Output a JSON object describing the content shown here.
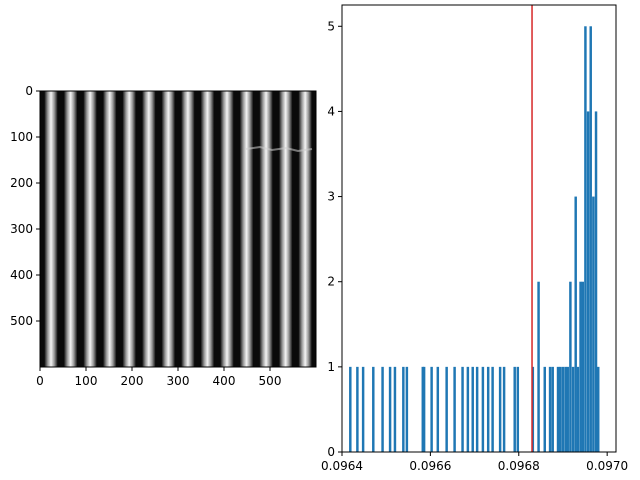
{
  "colors": {
    "bar": "#1f77b4",
    "threshold": "#d62728",
    "frame": "#000000"
  },
  "chart_data": [
    {
      "type": "image",
      "title": "",
      "xlabel": "",
      "ylabel": "",
      "xlim": [
        0,
        600
      ],
      "ylim": [
        600,
        0
      ],
      "x_ticks": [
        0,
        100,
        200,
        300,
        400,
        500
      ],
      "y_ticks": [
        0,
        100,
        200,
        300,
        400,
        500
      ],
      "stripe_count": 14,
      "stripe_period": 42.5,
      "stripe_offset": 10,
      "stripe_width": 28
    },
    {
      "type": "histogram",
      "title": "",
      "xlabel": "",
      "ylabel": "",
      "xlim": [
        0.0964,
        0.09702
      ],
      "ylim": [
        0,
        5.25
      ],
      "x_ticks": [
        "0.0964",
        "0.0966",
        "0.0968",
        "0.0970"
      ],
      "x_tick_values": [
        0.0964,
        0.0966,
        0.0968,
        0.097
      ],
      "y_ticks": [
        0,
        1,
        2,
        3,
        4,
        5
      ],
      "bin_width": 5.6e-06,
      "vline": 0.09683,
      "bins": [
        {
          "x": 0.096416,
          "count": 1
        },
        {
          "x": 0.096432,
          "count": 1
        },
        {
          "x": 0.096445,
          "count": 1
        },
        {
          "x": 0.096468,
          "count": 1
        },
        {
          "x": 0.096489,
          "count": 1
        },
        {
          "x": 0.096506,
          "count": 1
        },
        {
          "x": 0.096517,
          "count": 1
        },
        {
          "x": 0.096536,
          "count": 1
        },
        {
          "x": 0.096544,
          "count": 1
        },
        {
          "x": 0.09658,
          "count": 1
        },
        {
          "x": 0.096583,
          "count": 1
        },
        {
          "x": 0.0966,
          "count": 1
        },
        {
          "x": 0.096614,
          "count": 1
        },
        {
          "x": 0.096634,
          "count": 1
        },
        {
          "x": 0.096652,
          "count": 1
        },
        {
          "x": 0.09667,
          "count": 1
        },
        {
          "x": 0.096682,
          "count": 1
        },
        {
          "x": 0.096693,
          "count": 1
        },
        {
          "x": 0.096703,
          "count": 1
        },
        {
          "x": 0.096716,
          "count": 1
        },
        {
          "x": 0.096728,
          "count": 1
        },
        {
          "x": 0.096738,
          "count": 1
        },
        {
          "x": 0.096755,
          "count": 1
        },
        {
          "x": 0.096764,
          "count": 1
        },
        {
          "x": 0.096788,
          "count": 1
        },
        {
          "x": 0.096795,
          "count": 1
        },
        {
          "x": 0.096829,
          "count": 1
        },
        {
          "x": 0.096842,
          "count": 2
        },
        {
          "x": 0.096856,
          "count": 1
        },
        {
          "x": 0.096868,
          "count": 1
        },
        {
          "x": 0.096874,
          "count": 1
        },
        {
          "x": 0.096886,
          "count": 1
        },
        {
          "x": 0.096891,
          "count": 1
        },
        {
          "x": 0.096897,
          "count": 1
        },
        {
          "x": 0.096903,
          "count": 1
        },
        {
          "x": 0.096908,
          "count": 1
        },
        {
          "x": 0.096914,
          "count": 2
        },
        {
          "x": 0.09692,
          "count": 1
        },
        {
          "x": 0.096926,
          "count": 3
        },
        {
          "x": 0.096931,
          "count": 1
        },
        {
          "x": 0.096937,
          "count": 2
        },
        {
          "x": 0.096942,
          "count": 2
        },
        {
          "x": 0.096948,
          "count": 5
        },
        {
          "x": 0.096954,
          "count": 4
        },
        {
          "x": 0.09696,
          "count": 5
        },
        {
          "x": 0.096966,
          "count": 3
        },
        {
          "x": 0.096972,
          "count": 4
        },
        {
          "x": 0.096977,
          "count": 1
        }
      ]
    }
  ]
}
